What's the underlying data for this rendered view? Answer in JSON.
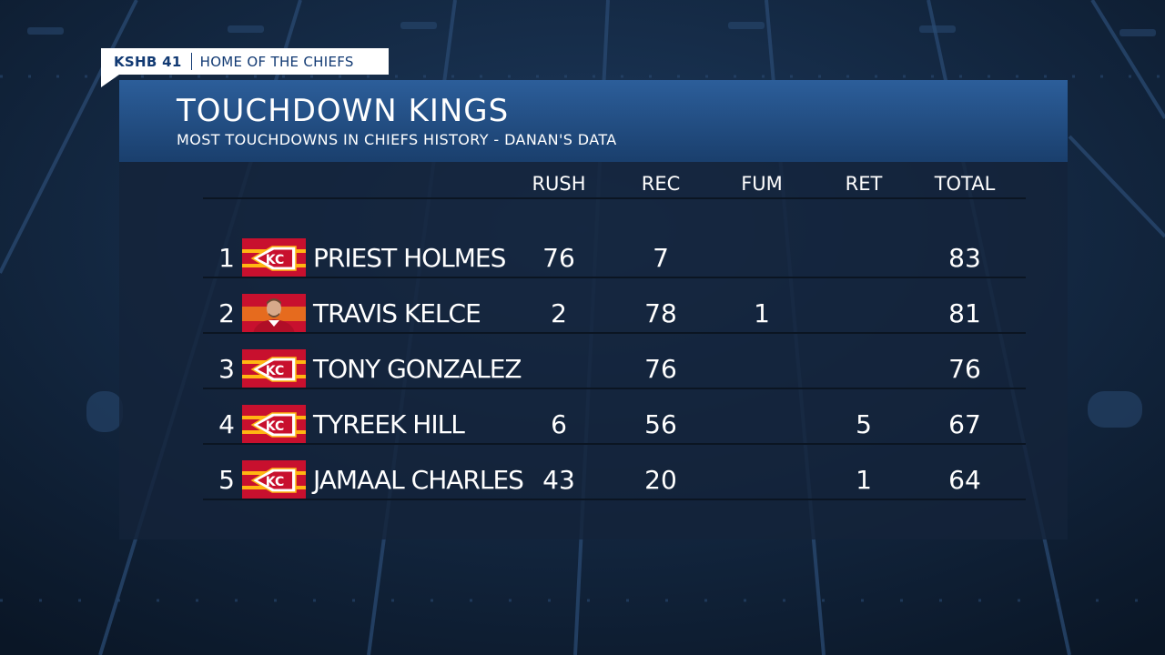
{
  "tag": {
    "brand": "KSHB 41",
    "show": "HOME OF THE CHIEFS"
  },
  "card": {
    "title": "TOUCHDOWN KINGS",
    "subtitle": "MOST TOUCHDOWNS IN CHIEFS HISTORY - DANAN'S DATA"
  },
  "columns": [
    "RUSH",
    "REC",
    "FUM",
    "RET",
    "TOTAL"
  ],
  "rows": [
    {
      "rank": "1",
      "name": "PRIEST HOLMES",
      "image": "chiefs-logo-icon",
      "rush": "76",
      "rec": "7",
      "fum": "",
      "ret": "",
      "total": "83"
    },
    {
      "rank": "2",
      "name": "TRAVIS KELCE",
      "image": "player-photo",
      "rush": "2",
      "rec": "78",
      "fum": "1",
      "ret": "",
      "total": "81"
    },
    {
      "rank": "3",
      "name": "TONY GONZALEZ",
      "image": "chiefs-logo-icon",
      "rush": "",
      "rec": "76",
      "fum": "",
      "ret": "",
      "total": "76"
    },
    {
      "rank": "4",
      "name": "TYREEK HILL",
      "image": "chiefs-logo-icon",
      "rush": "6",
      "rec": "56",
      "fum": "",
      "ret": "5",
      "total": "67"
    },
    {
      "rank": "5",
      "name": "JAMAAL CHARLES",
      "image": "chiefs-logo-icon",
      "rush": "43",
      "rec": "20",
      "fum": "",
      "ret": "1",
      "total": "64"
    }
  ],
  "colors": {
    "header_blue": "#2c5e9a",
    "chiefs_red": "#c8102e",
    "chiefs_gold": "#ffb612",
    "tag_text": "#123a73"
  }
}
